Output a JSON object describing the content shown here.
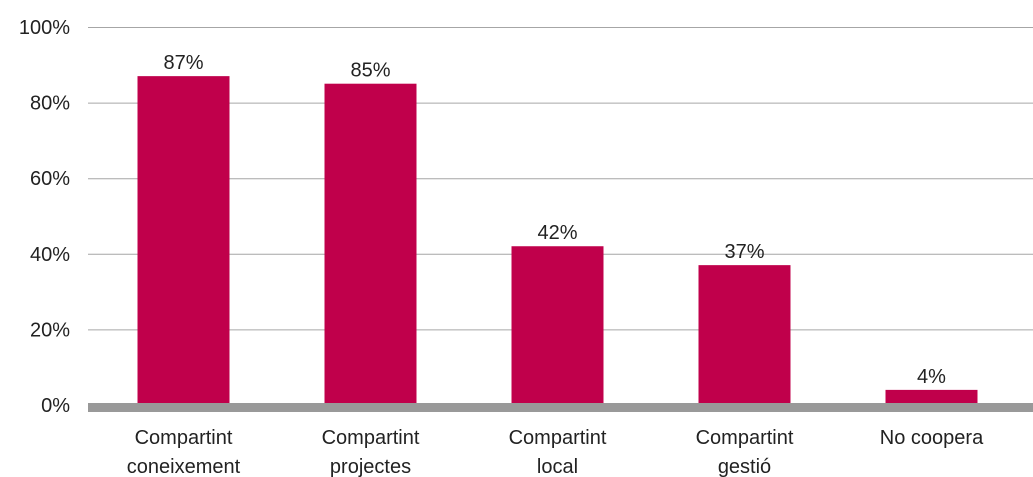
{
  "chart_data": {
    "type": "bar",
    "categories": [
      [
        "Compartint",
        "coneixement"
      ],
      [
        "Compartint",
        "projectes"
      ],
      [
        "Compartint",
        "local"
      ],
      [
        "Compartint",
        "gestió"
      ],
      [
        "No coopera"
      ]
    ],
    "values": [
      87,
      85,
      42,
      37,
      4
    ],
    "value_labels": [
      "87%",
      "85%",
      "42%",
      "37%",
      "4%"
    ],
    "ylim": [
      0,
      100
    ],
    "yticks": [
      0,
      20,
      40,
      60,
      80,
      100
    ],
    "ytick_labels": [
      "0%",
      "20%",
      "40%",
      "60%",
      "80%",
      "100%"
    ],
    "title": "",
    "xlabel": "",
    "ylabel": "",
    "grid": true,
    "legend": "none",
    "colors": {
      "bar": "#c0004b",
      "baseline": "#999999",
      "grid": "#a6a6a6",
      "text": "#222222"
    }
  }
}
